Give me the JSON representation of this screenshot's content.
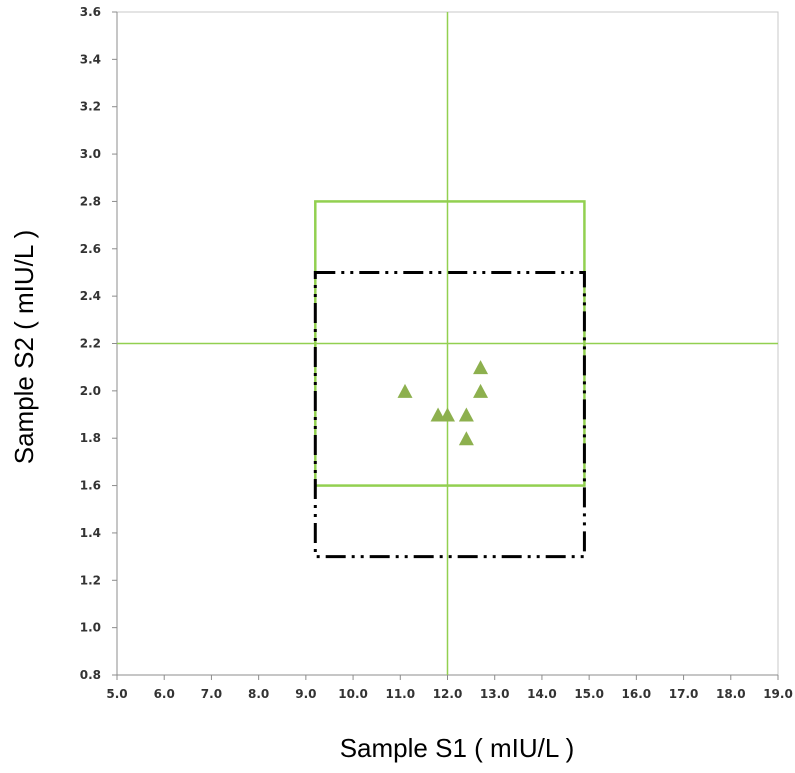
{
  "chart_data": {
    "type": "scatter",
    "title": "",
    "xlabel": "Sample S1 ( mIU/L )",
    "ylabel": "Sample S2 ( mIU/L )",
    "xlim": [
      5.0,
      19.0
    ],
    "ylim": [
      0.8,
      3.6
    ],
    "x_ticks": [
      "5.0",
      "6.0",
      "7.0",
      "8.0",
      "9.0",
      "10.0",
      "11.0",
      "12.0",
      "13.0",
      "14.0",
      "15.0",
      "16.0",
      "17.0",
      "18.0",
      "19.0"
    ],
    "y_ticks": [
      "0.8",
      "1.0",
      "1.2",
      "1.4",
      "1.6",
      "1.8",
      "2.0",
      "2.2",
      "2.4",
      "2.6",
      "2.8",
      "3.0",
      "3.2",
      "3.4",
      "3.6"
    ],
    "grid": false,
    "legend": "none",
    "series": [
      {
        "marker": "triangle",
        "color": "#8db04e",
        "points": [
          {
            "x": 11.1,
            "y": 2.0
          },
          {
            "x": 11.8,
            "y": 1.9
          },
          {
            "x": 12.0,
            "y": 1.9
          },
          {
            "x": 12.4,
            "y": 1.9
          },
          {
            "x": 12.4,
            "y": 1.8
          },
          {
            "x": 12.7,
            "y": 2.1
          },
          {
            "x": 12.7,
            "y": 2.0
          }
        ]
      }
    ],
    "reference_lines": {
      "color": "#92d050",
      "vertical_x": 12.0,
      "horizontal_y": 2.2
    },
    "reference_boxes": [
      {
        "style": "solid",
        "color": "#92d050",
        "x": [
          9.2,
          14.9
        ],
        "y": [
          1.6,
          2.8
        ]
      },
      {
        "style": "dash-dot-dot",
        "color": "#000000",
        "x": [
          9.2,
          14.9
        ],
        "y": [
          1.3,
          2.5
        ]
      }
    ]
  }
}
